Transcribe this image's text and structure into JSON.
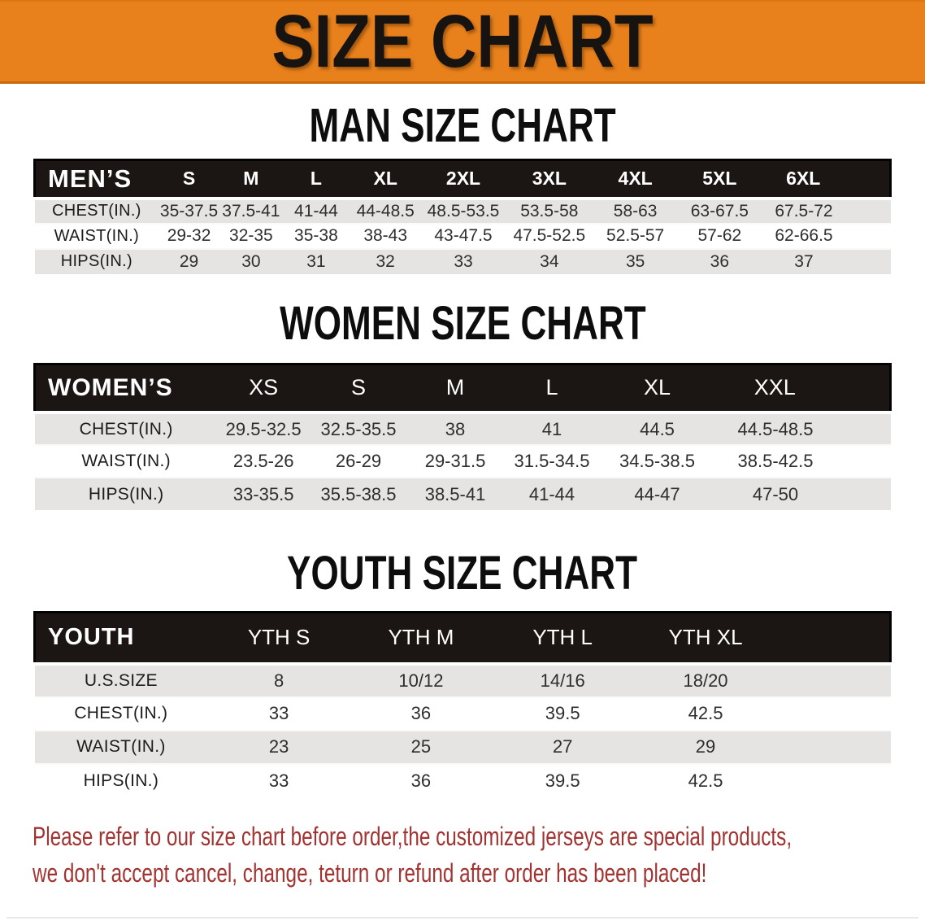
{
  "banner": {
    "title": "SIZE CHART",
    "bg_color": "#E8811C",
    "text_color": "#161310"
  },
  "sections": [
    {
      "heading": "MAN SIZE CHART",
      "table": {
        "label": "MEN’S",
        "columns": [
          "S",
          "M",
          "L",
          "XL",
          "2XL",
          "3XL",
          "4XL",
          "5XL",
          "6XL"
        ],
        "rows": [
          {
            "label": "CHEST(IN.)",
            "values": [
              "35-37.5",
              "37.5-41",
              "41-44",
              "44-48.5",
              "48.5-53.5",
              "53.5-58",
              "58-63",
              "63-67.5",
              "67.5-72"
            ]
          },
          {
            "label": "WAIST(IN.)",
            "values": [
              "29-32",
              "32-35",
              "35-38",
              "38-43",
              "43-47.5",
              "47.5-52.5",
              "52.5-57",
              "57-62",
              "62-66.5"
            ]
          },
          {
            "label": "HIPS(IN.)",
            "values": [
              "29",
              "30",
              "31",
              "32",
              "33",
              "34",
              "35",
              "36",
              "37"
            ]
          }
        ]
      }
    },
    {
      "heading": "WOMEN SIZE CHART",
      "table": {
        "label": "WOMEN’S",
        "columns": [
          "XS",
          "S",
          "M",
          "L",
          "XL",
          "XXL"
        ],
        "rows": [
          {
            "label": "CHEST(IN.)",
            "values": [
              "29.5-32.5",
              "32.5-35.5",
              "38",
              "41",
              "44.5",
              "44.5-48.5"
            ]
          },
          {
            "label": "WAIST(IN.)",
            "values": [
              "23.5-26",
              "26-29",
              "29-31.5",
              "31.5-34.5",
              "34.5-38.5",
              "38.5-42.5"
            ]
          },
          {
            "label": "HIPS(IN.)",
            "values": [
              "33-35.5",
              "35.5-38.5",
              "38.5-41",
              "41-44",
              "44-47",
              "47-50"
            ]
          }
        ]
      }
    },
    {
      "heading": "YOUTH SIZE CHART",
      "table": {
        "label": "YOUTH",
        "columns": [
          "YTH S",
          "YTH M",
          "YTH L",
          "YTH XL"
        ],
        "rows": [
          {
            "label": "U.S.SIZE",
            "values": [
              "8",
              "10/12",
              "14/16",
              "18/20"
            ]
          },
          {
            "label": "CHEST(IN.)",
            "values": [
              "33",
              "36",
              "39.5",
              "42.5"
            ]
          },
          {
            "label": "WAIST(IN.)",
            "values": [
              "23",
              "25",
              "27",
              "29"
            ]
          },
          {
            "label": "HIPS(IN.)",
            "values": [
              "33",
              "36",
              "39.5",
              "42.5"
            ]
          }
        ]
      }
    }
  ],
  "disclaimer": {
    "line1": "Please refer to our size chart before order,the customized jerseys are special products,",
    "line2": "we don't accept cancel, change, teturn or refund after order has been placed!",
    "text_color": "#A23331"
  },
  "colors": {
    "banner_orange": "#E8811C",
    "table_header_black": "#1B1514",
    "row_gray": "#E5E4E2",
    "row_white": "#FFFFFF"
  }
}
